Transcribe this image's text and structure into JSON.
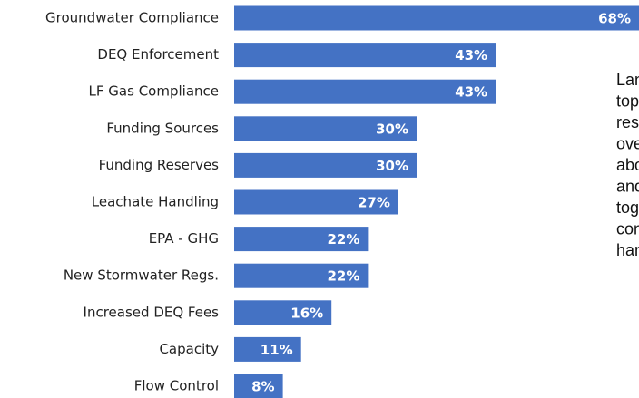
{
  "chart_data": {
    "type": "bar",
    "orientation": "horizontal",
    "categories": [
      "Groundwater Compliance",
      "DEQ Enforcement",
      "LF Gas Compliance",
      "Funding Sources",
      "Funding Reserves",
      "Leachate Handling",
      "EPA - GHG",
      "New Stormwater Regs.",
      "Increased DEQ Fees",
      "Capacity",
      "Flow Control"
    ],
    "values": [
      68,
      43,
      43,
      30,
      30,
      27,
      22,
      22,
      16,
      11,
      8
    ],
    "value_labels": [
      "68%",
      "43%",
      "43%",
      "30%",
      "30%",
      "27%",
      "22%",
      "22%",
      "16%",
      "11%",
      "8%"
    ],
    "color": "#4472c4",
    "xlim": [
      0,
      100
    ],
    "annotation": [
      "Lan",
      "top",
      "res",
      "ove",
      "abo",
      "and",
      "tog",
      "con",
      "han"
    ]
  }
}
